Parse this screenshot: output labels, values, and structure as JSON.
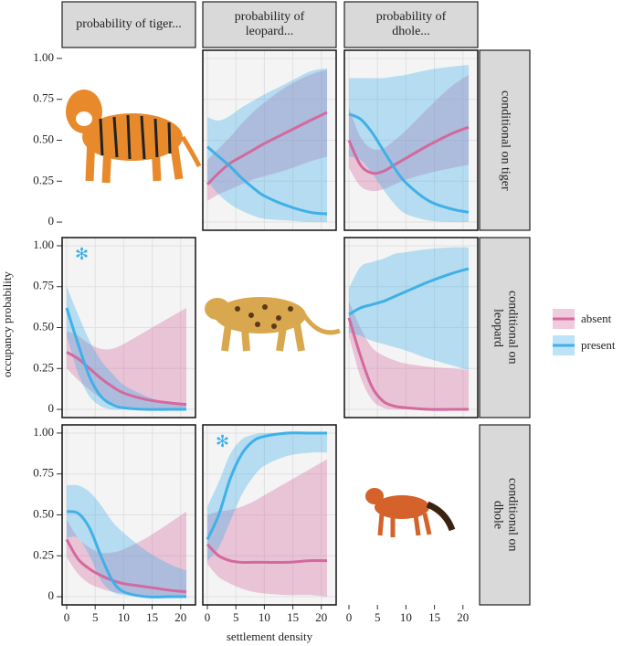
{
  "chart_data": {
    "type": "line",
    "xlabel": "settlement density",
    "ylabel": "occupancy probability",
    "columns": [
      "probability of tiger...",
      "probability of leopard...",
      "probability of dhole..."
    ],
    "rows": [
      "conditional on tiger",
      "conditional on leopard",
      "conditional on dhole"
    ],
    "series": [
      {
        "name": "absent",
        "color": "#d3699e"
      },
      {
        "name": "present",
        "color": "#3fb0e8"
      }
    ],
    "xlim": [
      -0.8,
      22.6
    ],
    "xticks": [
      0,
      5,
      10,
      15,
      20
    ],
    "ylim": [
      -0.05,
      1.05
    ],
    "yticks": [
      0,
      0.25,
      {
        "value": 0.5,
        "label": "0.50"
      },
      0.75,
      {
        "value": 1,
        "label": "1.00"
      }
    ],
    "grid": true,
    "x": [
      0,
      2,
      4,
      6,
      8,
      10,
      14,
      18,
      21
    ],
    "panels": [
      [
        null,
        {
          "series": [
            {
              "values": [
                0.23,
                0.3,
                0.36,
                0.4,
                0.44,
                0.48,
                0.55,
                0.62,
                0.67
              ],
              "lower": [
                0.13,
                0.17,
                0.2,
                0.23,
                0.26,
                0.28,
                0.32,
                0.37,
                0.4
              ],
              "upper": [
                0.38,
                0.45,
                0.52,
                0.6,
                0.67,
                0.73,
                0.83,
                0.9,
                0.93
              ]
            },
            {
              "values": [
                0.46,
                0.4,
                0.34,
                0.27,
                0.21,
                0.16,
                0.1,
                0.06,
                0.05
              ],
              "lower": [
                0.25,
                0.17,
                0.11,
                0.07,
                0.04,
                0.02,
                0.01,
                0,
                0
              ],
              "upper": [
                0.64,
                0.62,
                0.65,
                0.7,
                0.74,
                0.78,
                0.85,
                0.92,
                0.94
              ]
            }
          ]
        },
        {
          "series": [
            {
              "values": [
                0.5,
                0.35,
                0.3,
                0.31,
                0.35,
                0.39,
                0.47,
                0.54,
                0.58
              ],
              "lower": [
                0.33,
                0.22,
                0.19,
                0.2,
                0.23,
                0.26,
                0.3,
                0.33,
                0.35
              ],
              "upper": [
                0.7,
                0.52,
                0.45,
                0.45,
                0.5,
                0.56,
                0.7,
                0.83,
                0.9
              ]
            },
            {
              "values": [
                0.66,
                0.63,
                0.55,
                0.44,
                0.33,
                0.24,
                0.13,
                0.08,
                0.06
              ],
              "lower": [
                0.4,
                0.38,
                0.3,
                0.2,
                0.11,
                0.05,
                0.01,
                0,
                0
              ],
              "upper": [
                0.88,
                0.88,
                0.88,
                0.88,
                0.89,
                0.9,
                0.93,
                0.95,
                0.96
              ]
            }
          ]
        }
      ],
      [
        {
          "annotation": "✻",
          "series": [
            {
              "values": [
                0.35,
                0.31,
                0.25,
                0.19,
                0.14,
                0.1,
                0.06,
                0.04,
                0.03
              ],
              "lower": [
                0.25,
                0.18,
                0.12,
                0.07,
                0.04,
                0.02,
                0.01,
                0,
                0
              ],
              "upper": [
                0.48,
                0.45,
                0.4,
                0.37,
                0.37,
                0.4,
                0.48,
                0.56,
                0.62
              ]
            },
            {
              "values": [
                0.62,
                0.4,
                0.2,
                0.08,
                0.03,
                0.01,
                0,
                0,
                0
              ],
              "lower": [
                0.45,
                0.22,
                0.08,
                0.02,
                0,
                0,
                0,
                0,
                0
              ],
              "upper": [
                0.75,
                0.58,
                0.42,
                0.3,
                0.22,
                0.15,
                0.08,
                0.04,
                0.02
              ]
            }
          ]
        },
        null,
        {
          "series": [
            {
              "values": [
                0.56,
                0.33,
                0.14,
                0.05,
                0.02,
                0.01,
                0,
                0,
                0
              ],
              "lower": [
                0.45,
                0.2,
                0.06,
                0.01,
                0,
                0,
                0,
                0,
                0
              ],
              "upper": [
                0.66,
                0.5,
                0.38,
                0.33,
                0.3,
                0.28,
                0.26,
                0.25,
                0.24
              ]
            },
            {
              "values": [
                0.58,
                0.62,
                0.64,
                0.66,
                0.69,
                0.72,
                0.78,
                0.83,
                0.86
              ],
              "lower": [
                0.47,
                0.45,
                0.42,
                0.4,
                0.38,
                0.36,
                0.31,
                0.27,
                0.24
              ],
              "upper": [
                0.74,
                0.87,
                0.9,
                0.92,
                0.95,
                0.96,
                0.98,
                0.99,
                0.99
              ]
            }
          ]
        }
      ],
      [
        {
          "series": [
            {
              "values": [
                0.35,
                0.23,
                0.17,
                0.13,
                0.1,
                0.08,
                0.06,
                0.04,
                0.03
              ],
              "lower": [
                0.24,
                0.14,
                0.08,
                0.05,
                0.03,
                0.02,
                0.01,
                0,
                0
              ],
              "upper": [
                0.47,
                0.36,
                0.3,
                0.27,
                0.27,
                0.29,
                0.36,
                0.45,
                0.52
              ]
            },
            {
              "values": [
                0.52,
                0.51,
                0.42,
                0.25,
                0.1,
                0.03,
                0,
                0,
                0
              ],
              "lower": [
                0.36,
                0.36,
                0.25,
                0.1,
                0.03,
                0.01,
                0,
                0,
                0
              ],
              "upper": [
                0.68,
                0.68,
                0.64,
                0.56,
                0.46,
                0.39,
                0.28,
                0.2,
                0.16
              ]
            }
          ]
        },
        {
          "annotation": "✻",
          "series": [
            {
              "values": [
                0.32,
                0.25,
                0.22,
                0.21,
                0.21,
                0.21,
                0.21,
                0.22,
                0.22
              ],
              "lower": [
                0.2,
                0.12,
                0.08,
                0.05,
                0.03,
                0.02,
                0.01,
                0.01,
                0
              ],
              "upper": [
                0.5,
                0.52,
                0.53,
                0.55,
                0.58,
                0.62,
                0.7,
                0.78,
                0.84
              ]
            },
            {
              "values": [
                0.35,
                0.5,
                0.72,
                0.87,
                0.95,
                0.98,
                1,
                1,
                1
              ],
              "lower": [
                0.22,
                0.3,
                0.46,
                0.62,
                0.73,
                0.8,
                0.86,
                0.88,
                0.88
              ],
              "upper": [
                0.55,
                0.7,
                0.87,
                0.96,
                0.99,
                1,
                1,
                1,
                1
              ]
            }
          ]
        },
        null
      ]
    ]
  }
}
